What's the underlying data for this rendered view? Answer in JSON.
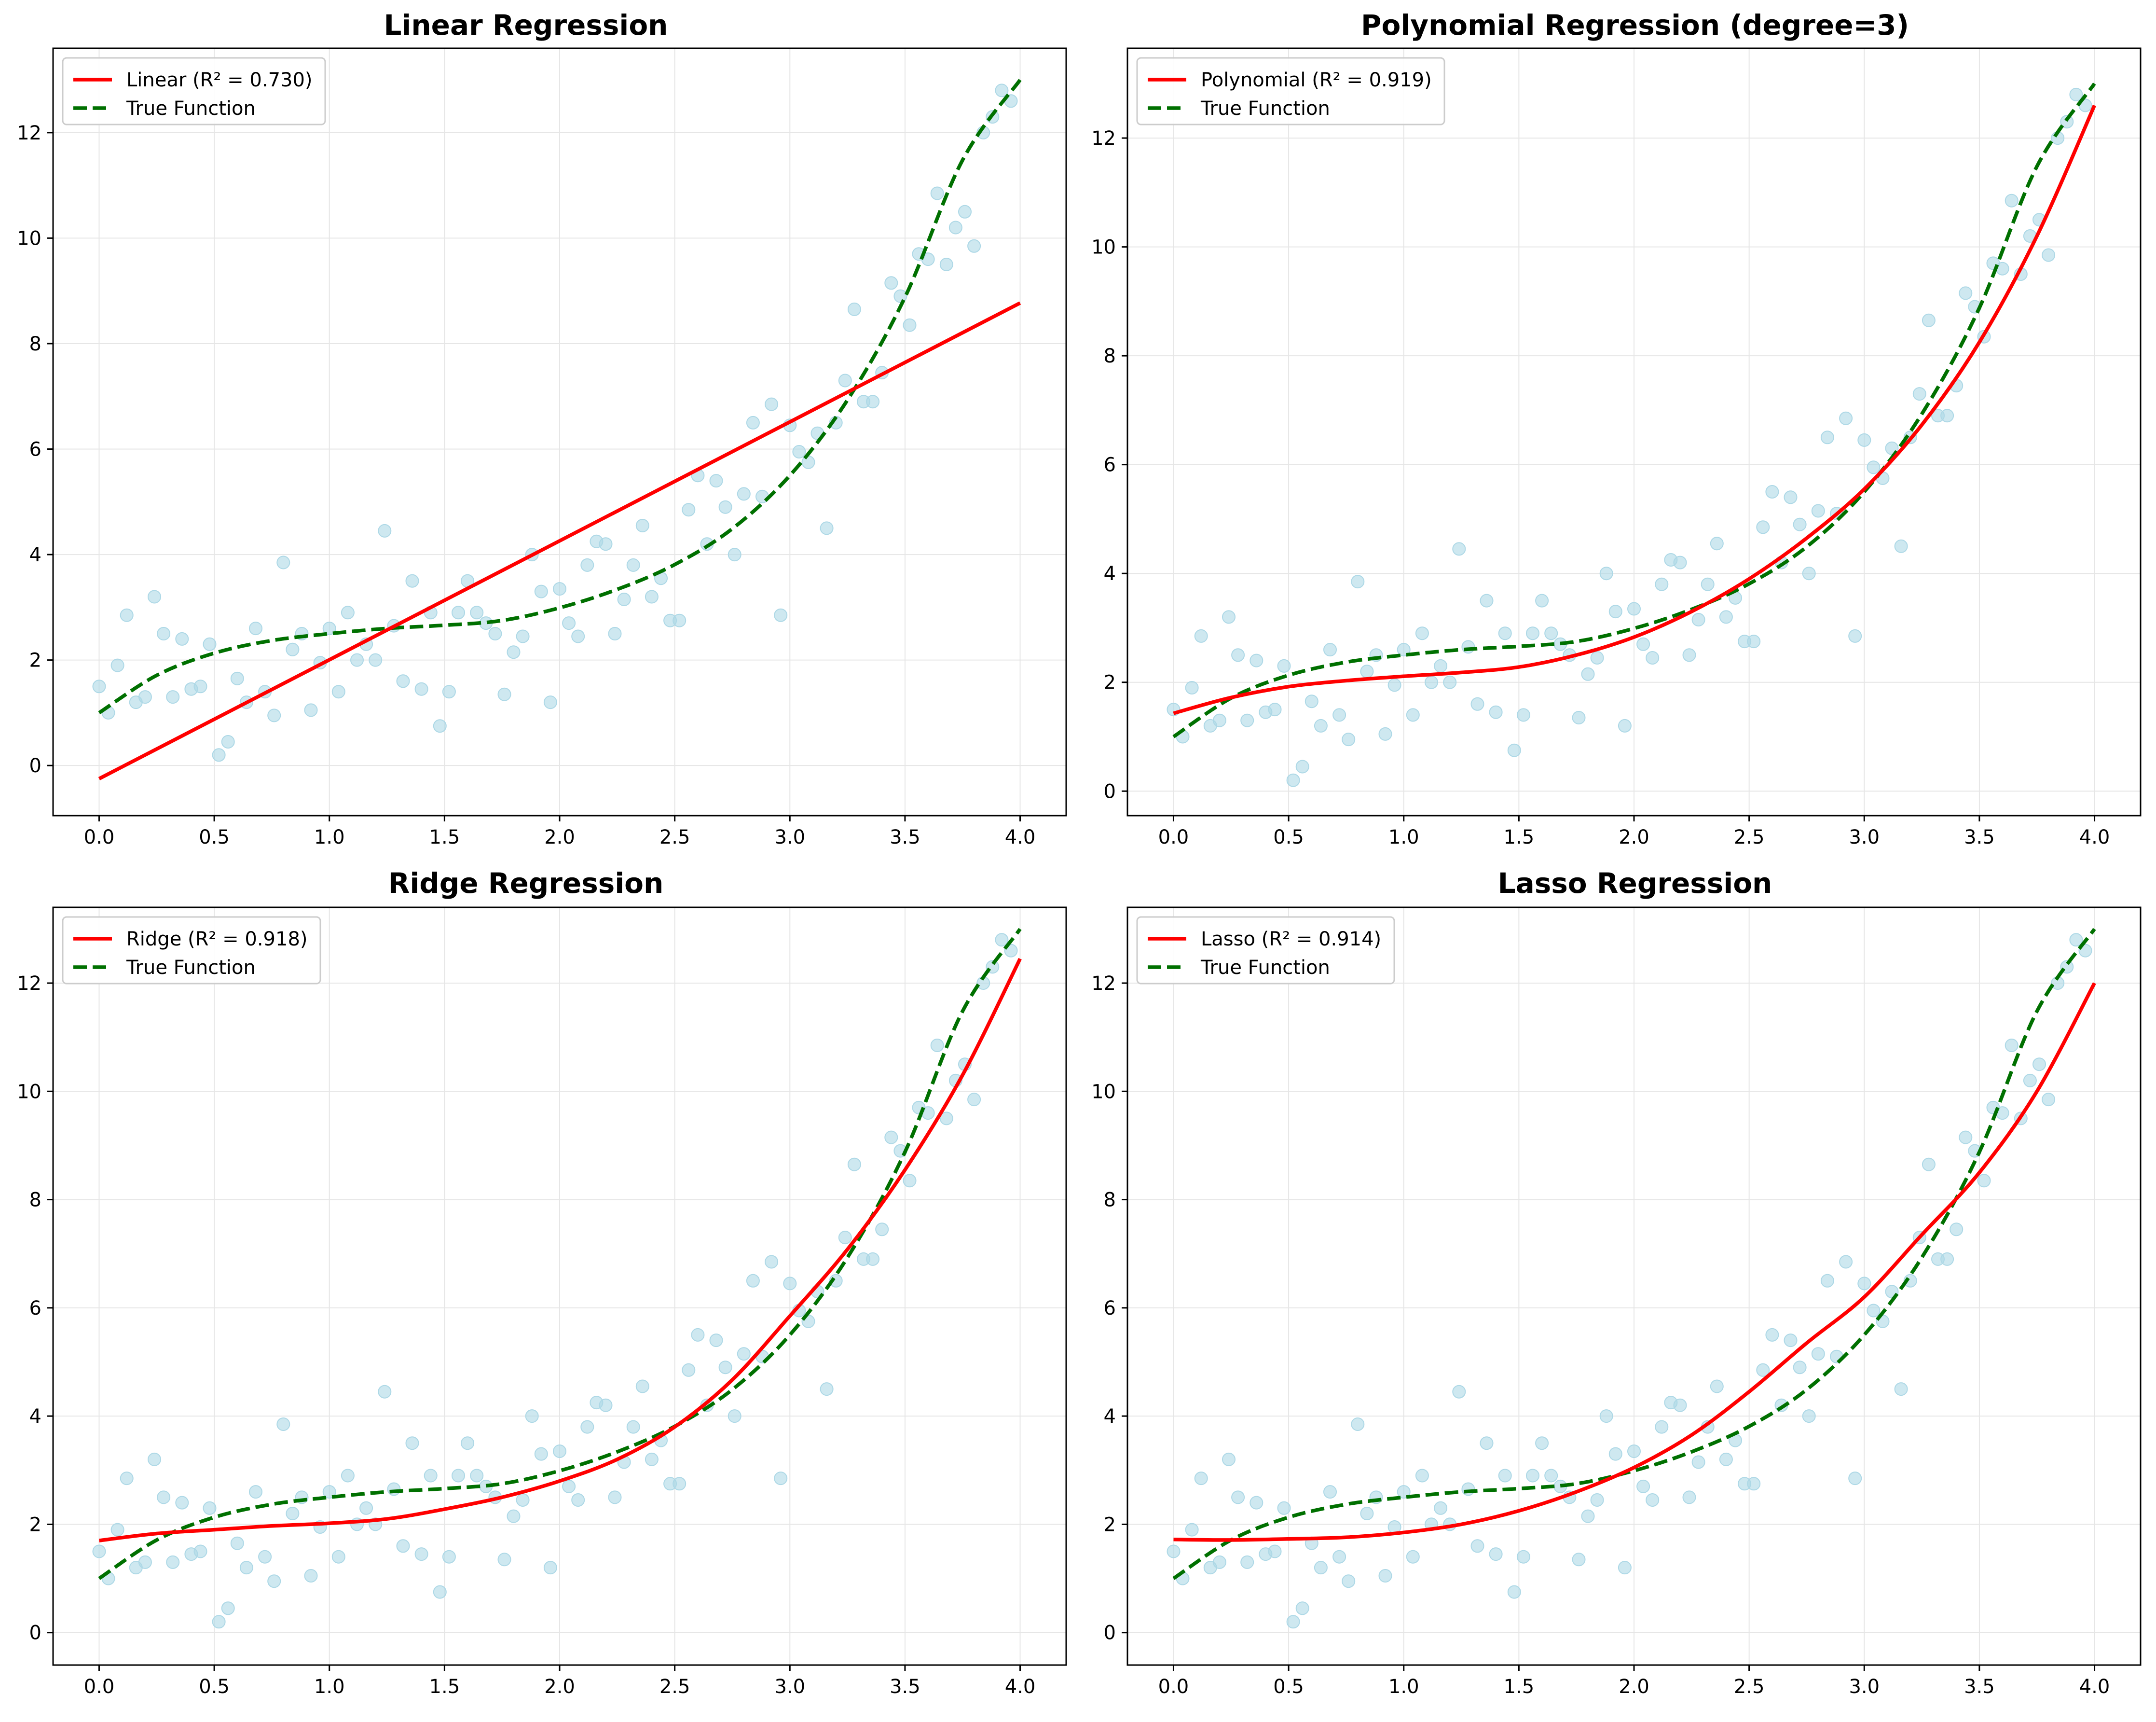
{
  "figure": {
    "background": "#ffffff"
  },
  "style": {
    "point_color": "#add8e6",
    "fit_color": "#ff0000",
    "true_color": "#007000",
    "grid_color": "#e6e6e6",
    "axis_color": "#000000"
  },
  "chart_data": [
    {
      "type": "line",
      "title": "Linear Regression",
      "fit_label": "Linear (R² = 0.730)",
      "true_label": "True Function",
      "xlim": [
        -0.2,
        4.2
      ],
      "ylim": [
        -0.95,
        13.6
      ],
      "xticks": [
        0.0,
        0.5,
        1.0,
        1.5,
        2.0,
        2.5,
        3.0,
        3.5,
        4.0
      ],
      "yticks": [
        0,
        2,
        4,
        6,
        8,
        10,
        12
      ],
      "grid": true,
      "legend_position": "upper left",
      "fit": {
        "x": [
          0.0,
          4.0
        ],
        "y": [
          -0.25,
          8.77
        ]
      }
    },
    {
      "type": "line",
      "title": "Polynomial Regression (degree=3)",
      "fit_label": "Polynomial (R² = 0.919)",
      "true_label": "True Function",
      "xlim": [
        -0.2,
        4.2
      ],
      "ylim": [
        -0.45,
        13.65
      ],
      "xticks": [
        0.0,
        0.5,
        1.0,
        1.5,
        2.0,
        2.5,
        3.0,
        3.5,
        4.0
      ],
      "yticks": [
        0,
        2,
        4,
        6,
        8,
        10,
        12
      ],
      "grid": true,
      "legend_position": "upper left",
      "fit": {
        "x": [
          0.0,
          0.25,
          0.5,
          0.75,
          1.0,
          1.25,
          1.5,
          1.75,
          2.0,
          2.25,
          2.5,
          2.75,
          3.0,
          3.25,
          3.5,
          3.75,
          4.0
        ],
        "y": [
          1.43,
          1.72,
          1.92,
          2.03,
          2.11,
          2.18,
          2.28,
          2.5,
          2.83,
          3.3,
          3.9,
          4.65,
          5.55,
          6.73,
          8.25,
          10.2,
          12.6
        ]
      }
    },
    {
      "type": "line",
      "title": "Ridge Regression",
      "fit_label": "Ridge (R² = 0.918)",
      "true_label": "True Function",
      "xlim": [
        -0.2,
        4.2
      ],
      "ylim": [
        -0.6,
        13.4
      ],
      "xticks": [
        0.0,
        0.5,
        1.0,
        1.5,
        2.0,
        2.5,
        3.0,
        3.5,
        4.0
      ],
      "yticks": [
        0,
        2,
        4,
        6,
        8,
        10,
        12
      ],
      "grid": true,
      "legend_position": "upper left",
      "fit": {
        "x": [
          0.0,
          0.25,
          0.5,
          0.75,
          1.0,
          1.25,
          1.5,
          1.75,
          2.0,
          2.25,
          2.5,
          2.75,
          3.0,
          3.25,
          3.5,
          3.75,
          4.0
        ],
        "y": [
          1.7,
          1.83,
          1.9,
          1.97,
          2.02,
          2.1,
          2.28,
          2.5,
          2.8,
          3.2,
          3.8,
          4.67,
          5.85,
          7.08,
          8.55,
          10.3,
          12.45
        ]
      }
    },
    {
      "type": "line",
      "title": "Lasso Regression",
      "fit_label": "Lasso (R² = 0.914)",
      "true_label": "True Function",
      "xlim": [
        -0.2,
        4.2
      ],
      "ylim": [
        -0.6,
        13.4
      ],
      "xticks": [
        0.0,
        0.5,
        1.0,
        1.5,
        2.0,
        2.5,
        3.0,
        3.5,
        4.0
      ],
      "yticks": [
        0,
        2,
        4,
        6,
        8,
        10,
        12
      ],
      "grid": true,
      "legend_position": "upper left",
      "fit": {
        "x": [
          0.0,
          0.25,
          0.5,
          0.75,
          1.0,
          1.25,
          1.5,
          1.75,
          2.0,
          2.25,
          2.5,
          2.75,
          3.0,
          3.25,
          3.5,
          3.75,
          4.0
        ],
        "y": [
          1.72,
          1.71,
          1.73,
          1.76,
          1.85,
          2.0,
          2.25,
          2.6,
          3.05,
          3.65,
          4.45,
          5.35,
          6.2,
          7.35,
          8.5,
          10.0,
          12.0
        ]
      }
    }
  ],
  "true_function": {
    "x": [
      0.0,
      0.25,
      0.5,
      0.75,
      1.0,
      1.25,
      1.5,
      1.75,
      2.0,
      2.25,
      2.5,
      2.75,
      3.0,
      3.25,
      3.5,
      3.75,
      4.0
    ],
    "y": [
      1.0,
      1.71,
      2.13,
      2.37,
      2.5,
      2.6,
      2.66,
      2.75,
      2.99,
      3.34,
      3.81,
      4.49,
      5.5,
      6.93,
      8.88,
      11.48,
      13.0
    ]
  },
  "observations": {
    "x": [
      0.0,
      0.04,
      0.08,
      0.12,
      0.16,
      0.2,
      0.24,
      0.28,
      0.32,
      0.36,
      0.4,
      0.44,
      0.48,
      0.52,
      0.56,
      0.6,
      0.64,
      0.68,
      0.72,
      0.76,
      0.8,
      0.84,
      0.88,
      0.92,
      0.96,
      1.0,
      1.04,
      1.08,
      1.12,
      1.16,
      1.2,
      1.24,
      1.28,
      1.32,
      1.36,
      1.4,
      1.44,
      1.48,
      1.52,
      1.56,
      1.6,
      1.64,
      1.68,
      1.72,
      1.76,
      1.8,
      1.84,
      1.88,
      1.92,
      1.96,
      2.0,
      2.04,
      2.08,
      2.12,
      2.16,
      2.2,
      2.24,
      2.28,
      2.32,
      2.36,
      2.4,
      2.44,
      2.48,
      2.52,
      2.56,
      2.6,
      2.64,
      2.68,
      2.72,
      2.76,
      2.8,
      2.84,
      2.88,
      2.92,
      2.96,
      3.0,
      3.04,
      3.08,
      3.12,
      3.16,
      3.2,
      3.24,
      3.28,
      3.32,
      3.36,
      3.4,
      3.44,
      3.48,
      3.52,
      3.56,
      3.6,
      3.64,
      3.68,
      3.72,
      3.76,
      3.8,
      3.84,
      3.88,
      3.92,
      3.96
    ],
    "y": [
      1.5,
      1.0,
      1.9,
      2.85,
      1.2,
      1.3,
      3.2,
      2.5,
      1.3,
      2.4,
      1.45,
      1.5,
      2.3,
      0.2,
      0.45,
      1.65,
      1.2,
      2.6,
      1.4,
      0.95,
      3.85,
      2.2,
      2.5,
      1.05,
      1.95,
      2.6,
      1.4,
      2.9,
      2.0,
      2.3,
      2.0,
      4.45,
      2.65,
      1.6,
      3.5,
      1.45,
      2.9,
      0.75,
      1.4,
      2.9,
      3.5,
      2.9,
      2.7,
      2.5,
      1.35,
      2.15,
      2.45,
      4.0,
      3.3,
      1.2,
      3.35,
      2.7,
      2.45,
      3.8,
      4.25,
      4.2,
      2.5,
      3.15,
      3.8,
      4.55,
      3.2,
      3.55,
      2.75,
      2.75,
      4.85,
      5.5,
      4.2,
      5.4,
      4.9,
      4.0,
      5.15,
      6.5,
      5.1,
      6.85,
      2.85,
      6.45,
      5.95,
      5.75,
      6.3,
      4.5,
      6.5,
      7.3,
      8.65,
      6.9,
      6.9,
      7.45,
      9.15,
      8.9,
      8.35,
      9.7,
      9.6,
      10.85,
      9.5,
      10.2,
      10.5,
      9.85,
      12.0,
      12.3,
      12.8,
      12.6
    ]
  }
}
